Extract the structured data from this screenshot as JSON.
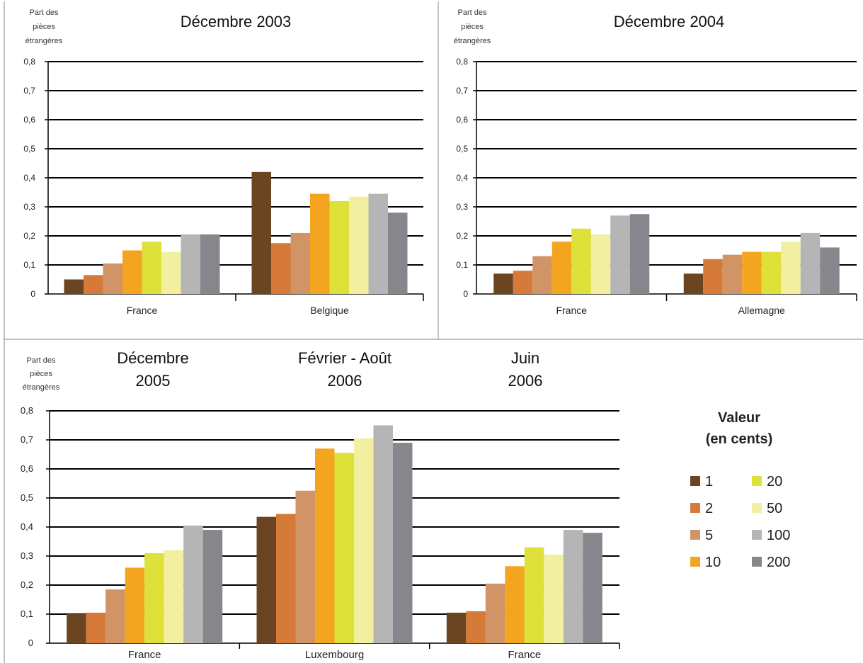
{
  "colors": {
    "1": "#6b4522",
    "2": "#d67a3a",
    "5": "#d09466",
    "10": "#f4a520",
    "20": "#dde13a",
    "50": "#f2f0a0",
    "100": "#b5b5b5",
    "200": "#86878c"
  },
  "legend": {
    "title_line1": "Valeur",
    "title_line2": "(en cents)",
    "items": [
      "1",
      "2",
      "5",
      "10",
      "20",
      "50",
      "100",
      "200"
    ]
  },
  "chart_data": [
    {
      "type": "bar",
      "title": "Décembre 2003",
      "ylabel_lines": [
        "Part des",
        "pièces",
        "étrangères"
      ],
      "yticks": [
        "0",
        "0,1",
        "0,2",
        "0,3",
        "0,4",
        "0,5",
        "0,6",
        "0,7",
        "0,8"
      ],
      "ylim": [
        0,
        0.8
      ],
      "grid": true,
      "categories": [
        "France",
        "Belgique"
      ],
      "series": [
        {
          "name": "1",
          "values": [
            0.05,
            0.42
          ]
        },
        {
          "name": "2",
          "values": [
            0.065,
            0.175
          ]
        },
        {
          "name": "5",
          "values": [
            0.105,
            0.21
          ]
        },
        {
          "name": "10",
          "values": [
            0.15,
            0.345
          ]
        },
        {
          "name": "20",
          "values": [
            0.18,
            0.32
          ]
        },
        {
          "name": "50",
          "values": [
            0.145,
            0.335
          ]
        },
        {
          "name": "100",
          "values": [
            0.205,
            0.345
          ]
        },
        {
          "name": "200",
          "values": [
            0.205,
            0.28
          ]
        }
      ]
    },
    {
      "type": "bar",
      "title": "Décembre 2004",
      "ylabel_lines": [
        "Part des",
        "pièces",
        "étrangères"
      ],
      "yticks": [
        "0",
        "0,1",
        "0,2",
        "0,3",
        "0,4",
        "0,5",
        "0,6",
        "0,7",
        "0,8"
      ],
      "ylim": [
        0,
        0.8
      ],
      "grid": true,
      "categories": [
        "France",
        "Allemagne"
      ],
      "series": [
        {
          "name": "1",
          "values": [
            0.07,
            0.07
          ]
        },
        {
          "name": "2",
          "values": [
            0.08,
            0.12
          ]
        },
        {
          "name": "5",
          "values": [
            0.13,
            0.135
          ]
        },
        {
          "name": "10",
          "values": [
            0.18,
            0.145
          ]
        },
        {
          "name": "20",
          "values": [
            0.225,
            0.145
          ]
        },
        {
          "name": "50",
          "values": [
            0.205,
            0.18
          ]
        },
        {
          "name": "100",
          "values": [
            0.27,
            0.21
          ]
        },
        {
          "name": "200",
          "values": [
            0.275,
            0.16
          ]
        }
      ]
    },
    {
      "type": "bar",
      "titles": [
        [
          "Décembre",
          "2005"
        ],
        [
          "Février - Août",
          "2006"
        ],
        [
          "Juin",
          "2006"
        ]
      ],
      "ylabel_lines": [
        "Part des",
        "pièces",
        "étrangères"
      ],
      "yticks": [
        "0",
        "0,1",
        "0,2",
        "0,3",
        "0,4",
        "0,5",
        "0,6",
        "0,7",
        "0,8"
      ],
      "ylim": [
        0,
        0.8
      ],
      "grid": true,
      "categories": [
        "France",
        "Luxembourg",
        "France"
      ],
      "series": [
        {
          "name": "1",
          "values": [
            0.1,
            0.435,
            0.105
          ]
        },
        {
          "name": "2",
          "values": [
            0.105,
            0.445,
            0.11
          ]
        },
        {
          "name": "5",
          "values": [
            0.185,
            0.525,
            0.205
          ]
        },
        {
          "name": "10",
          "values": [
            0.26,
            0.67,
            0.265
          ]
        },
        {
          "name": "20",
          "values": [
            0.31,
            0.655,
            0.33
          ]
        },
        {
          "name": "50",
          "values": [
            0.32,
            0.705,
            0.305
          ]
        },
        {
          "name": "100",
          "values": [
            0.405,
            0.75,
            0.39
          ]
        },
        {
          "name": "200",
          "values": [
            0.39,
            0.69,
            0.38
          ]
        }
      ]
    }
  ]
}
